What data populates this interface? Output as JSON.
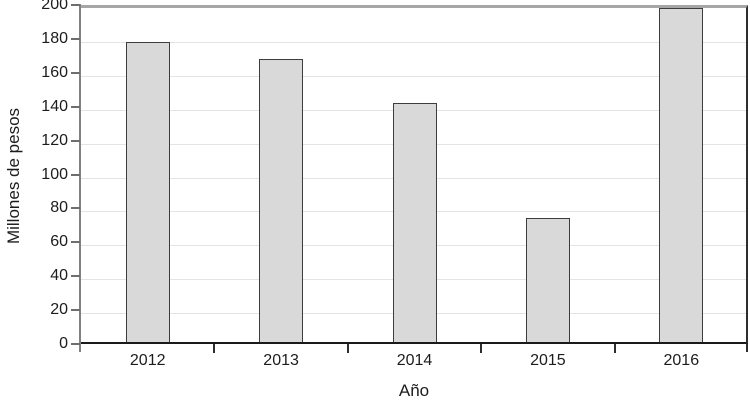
{
  "chart_data": {
    "type": "bar",
    "categories": [
      "2012",
      "2013",
      "2014",
      "2015",
      "2016"
    ],
    "values": [
      177,
      167,
      141,
      73,
      197
    ],
    "title": "",
    "xlabel": "Año",
    "ylabel": "Millones de pesos",
    "ylim": [
      0,
      200
    ],
    "ytick_step": 20,
    "grid": true,
    "legend": "none",
    "colors": {
      "bar_fill": "#d9d9d9",
      "bar_border": "#3d3d3d",
      "gridline": "#e4e4e4",
      "y_axis_line": "#808080",
      "plot_top_border": "#a6a6a6",
      "plot_right_border": "#2e2e2e",
      "x_axis_line": "#1a1a1a",
      "text": "#1c1c1c",
      "background": "#ffffff"
    }
  }
}
